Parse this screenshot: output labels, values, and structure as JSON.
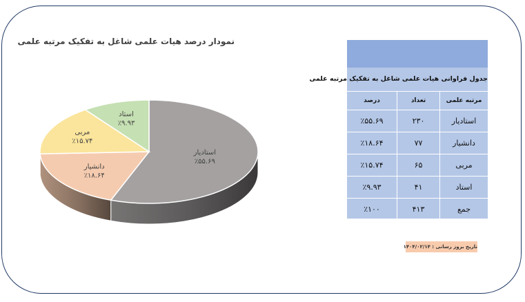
{
  "chart_data": {
    "type": "pie",
    "title": "نمودار درصد هیات علمی شاغل به تفکیک مرتبه علمی",
    "slices": [
      {
        "label": "استادیار",
        "value": 55.69,
        "value_label": "٪۵۵.۶۹",
        "color": "#a5a1a1"
      },
      {
        "label": "دانشیار",
        "value": 18.64,
        "value_label": "٪۱۸.۶۴",
        "color": "#f5cbaf"
      },
      {
        "label": "مربی",
        "value": 15.74,
        "value_label": "٪۱۵.۷۴",
        "color": "#fbe59c"
      },
      {
        "label": "استاد",
        "value": 9.93,
        "value_label": "٪۹.۹۳",
        "color": "#c5e0b3"
      }
    ]
  },
  "table": {
    "title": "جدول فراوانی هیات علمی شاغل به تفکیک مرتبه علمی",
    "headers": [
      "مرتبه علمی",
      "تعداد",
      "درصد"
    ],
    "rows": [
      [
        "استادیار",
        "۲۳۰",
        "٪۵۵.۶۹"
      ],
      [
        "دانشیار",
        "۷۷",
        "٪۱۸.۶۴"
      ],
      [
        "مربی",
        "۶۵",
        "٪۱۵.۷۴"
      ],
      [
        "استاد",
        "۴۱",
        "٪۹.۹۳"
      ],
      [
        "جمع",
        "۴۱۳",
        "٪۱۰۰"
      ]
    ]
  },
  "update_date": "تاریخ بروز رسانی : ۱۴۰۴/۰۲/۱۴"
}
